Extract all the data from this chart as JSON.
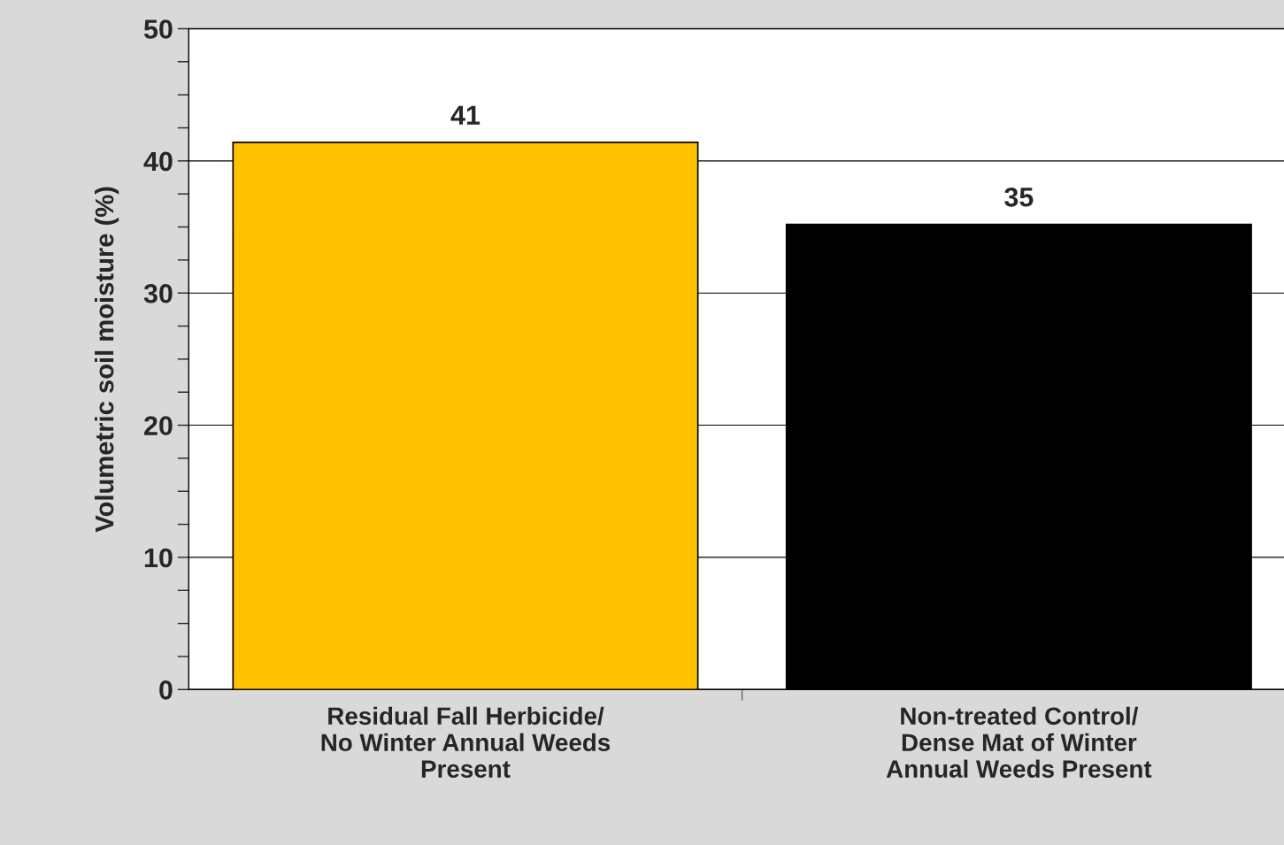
{
  "chart_data": {
    "type": "bar",
    "ylabel": "Volumetric soil moisture (%)",
    "categories": [
      "Residual Fall Herbicide/\nNo Winter Annual Weeds\nPresent",
      "Non-treated Control/\nDense Mat of Winter\nAnnual Weeds Present"
    ],
    "values": [
      41.4,
      35.2
    ],
    "colors": [
      "#ffc000",
      "#000000"
    ],
    "value_labels": [
      "41",
      "35"
    ],
    "ylim": [
      0,
      50
    ],
    "yticks": [
      0,
      {
        "value": 2.5,
        "label": null
      },
      {
        "value": 5,
        "label": null
      },
      {
        "value": 7.5,
        "label": null
      },
      10,
      {
        "value": 12.5,
        "label": null
      },
      {
        "value": 15,
        "label": null
      },
      {
        "value": 17.5,
        "label": null
      },
      20,
      {
        "value": 22.5,
        "label": null
      },
      {
        "value": 25,
        "label": null
      },
      {
        "value": 27.5,
        "label": null
      },
      30,
      {
        "value": 32.5,
        "label": null
      },
      {
        "value": 35,
        "label": null
      },
      {
        "value": 37.5,
        "label": null
      },
      40,
      {
        "value": 42.5,
        "label": null
      },
      {
        "value": 45,
        "label": null
      },
      {
        "value": 47.5,
        "label": null
      },
      50
    ],
    "grid": "y",
    "legend": false
  }
}
